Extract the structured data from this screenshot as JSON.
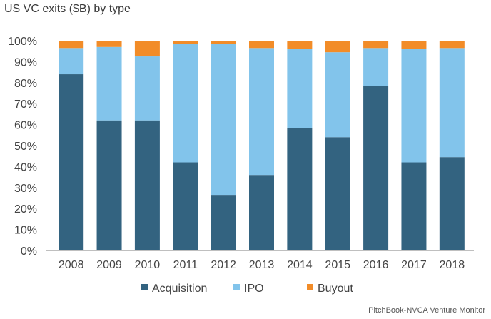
{
  "chart_data": {
    "type": "bar",
    "stacked": true,
    "title": "US VC exits ($B) by type",
    "xlabel": "",
    "ylabel": "",
    "ylim": [
      0,
      1
    ],
    "yticks": [
      "0%",
      "10%",
      "20%",
      "30%",
      "40%",
      "50%",
      "60%",
      "70%",
      "80%",
      "90%",
      "100%"
    ],
    "categories": [
      "2008",
      "2009",
      "2010",
      "2011",
      "2012",
      "2013",
      "2014",
      "2015",
      "2016",
      "2017",
      "2018"
    ],
    "series": [
      {
        "name": "Acquisition",
        "color": "#336380",
        "values": [
          0.84,
          0.62,
          0.62,
          0.42,
          0.265,
          0.36,
          0.585,
          0.54,
          0.785,
          0.42,
          0.445
        ]
      },
      {
        "name": "IPO",
        "color": "#82c4eb",
        "values": [
          0.125,
          0.35,
          0.305,
          0.565,
          0.72,
          0.605,
          0.375,
          0.405,
          0.18,
          0.54,
          0.52
        ]
      },
      {
        "name": "Buyout",
        "color": "#f28c28",
        "values": [
          0.035,
          0.03,
          0.073,
          0.015,
          0.015,
          0.035,
          0.04,
          0.055,
          0.035,
          0.04,
          0.035
        ]
      }
    ],
    "grid": false,
    "legend": "bottom"
  },
  "source": "PitchBook-NVCA Venture Monitor"
}
